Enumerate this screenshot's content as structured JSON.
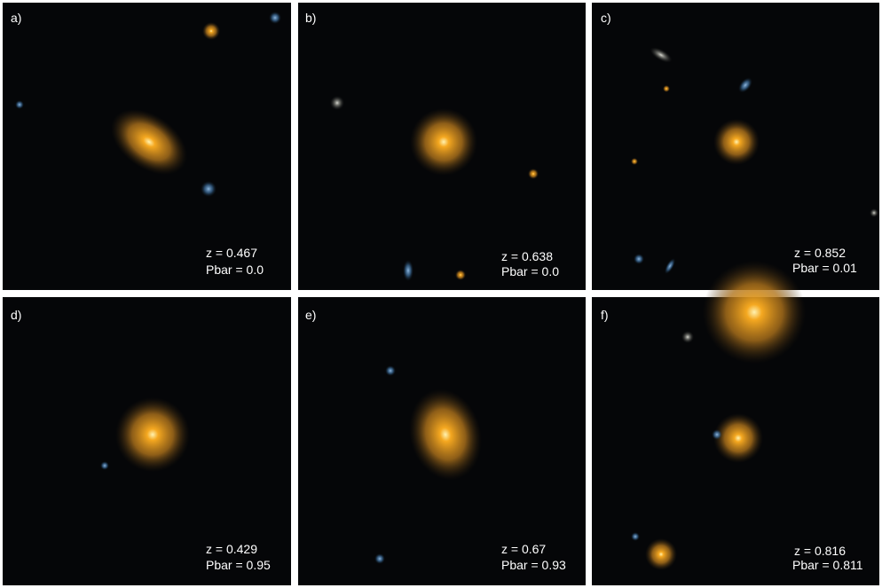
{
  "panels": [
    {
      "label": "a)",
      "redshift": "z = 0.467",
      "pbar": "Pbar = 0.0"
    },
    {
      "label": "b)",
      "redshift": "z = 0.638",
      "pbar": "Pbar = 0.0"
    },
    {
      "label": "c)",
      "redshift": "z = 0.852",
      "pbar": "Pbar = 0.01"
    },
    {
      "label": "d)",
      "redshift": "z = 0.429",
      "pbar": "Pbar = 0.95"
    },
    {
      "label": "e)",
      "redshift": "z = 0.67",
      "pbar": "Pbar = 0.93"
    },
    {
      "label": "f)",
      "redshift": "z = 0.816",
      "pbar": "Pbar = 0.811"
    }
  ]
}
